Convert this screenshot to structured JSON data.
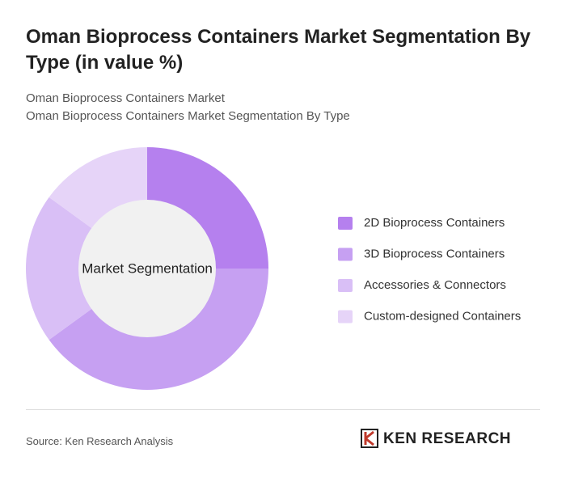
{
  "header": {
    "title": "Oman Bioprocess Containers Market Segmentation By Type (in value %)",
    "subtitle": [
      "Oman Bioprocess Containers Market",
      "Oman Bioprocess Containers Market Segmentation By Type"
    ]
  },
  "chart_data": {
    "type": "donut",
    "center_label": "Market Segmentation",
    "categories": [
      "2D Bioprocess Containers",
      "3D Bioprocess Containers",
      "Accessories & Connectors",
      "Custom-designed Containers"
    ],
    "values": [
      25,
      40,
      20,
      15
    ],
    "colors": [
      "#b580ee",
      "#c6a0f2",
      "#d9bff6",
      "#e6d4f8"
    ]
  },
  "footer": {
    "source": "Source: Ken Research Analysis",
    "logo": "KEN RESEARCH"
  }
}
